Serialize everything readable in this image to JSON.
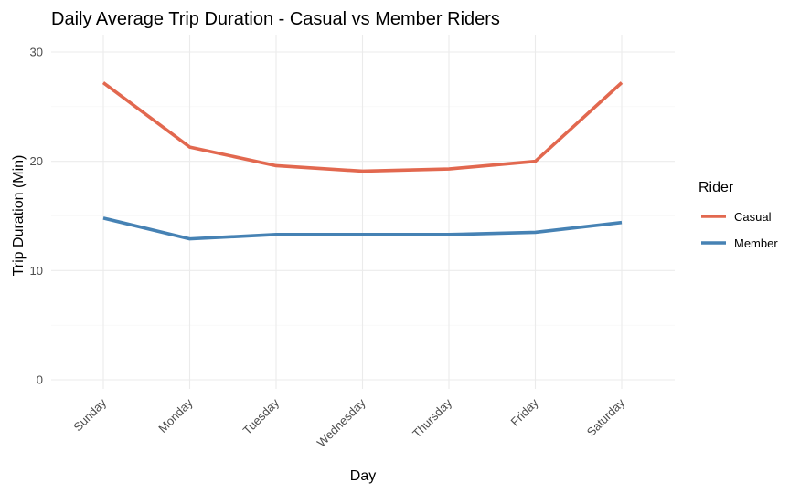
{
  "chart_data": {
    "type": "line",
    "title": "Daily Average Trip Duration - Casual vs Member Riders",
    "xlabel": "Day",
    "ylabel": "Trip Duration (Min)",
    "categories": [
      "Sunday",
      "Monday",
      "Tuesday",
      "Wednesday",
      "Thursday",
      "Friday",
      "Saturday"
    ],
    "ylim": [
      0,
      30
    ],
    "yticks": [
      0,
      10,
      20,
      30
    ],
    "grid": true,
    "legend": {
      "title": "Rider",
      "position": "right"
    },
    "series": [
      {
        "name": "Casual",
        "color": "#E2684F",
        "values": [
          27.2,
          21.3,
          19.6,
          19.1,
          19.3,
          20.0,
          27.2
        ]
      },
      {
        "name": "Member",
        "color": "#4682B4",
        "values": [
          14.8,
          12.9,
          13.3,
          13.3,
          13.3,
          13.5,
          14.4
        ]
      }
    ]
  }
}
